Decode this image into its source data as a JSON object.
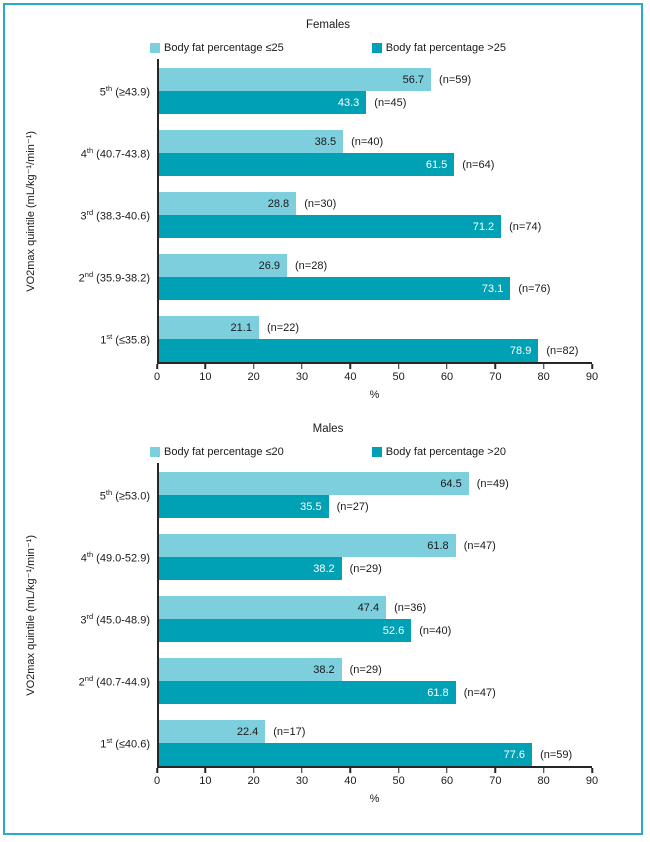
{
  "figure": {
    "border_color": "#2baac5",
    "background": "#ffffff",
    "axis_color": "#262626"
  },
  "chart_data": [
    {
      "type": "bar",
      "orientation": "horizontal",
      "title": "Females",
      "xlabel": "%",
      "ylabel": "VO2max quintile (mL/kg⁻¹/min⁻¹)",
      "xlim": [
        0,
        90
      ],
      "xticks": [
        0,
        10,
        20,
        30,
        40,
        50,
        60,
        70,
        80,
        90
      ],
      "grid": false,
      "legend_position": "top",
      "categories": [
        "5th (≥43.9)",
        "4th (40.7-43.8)",
        "3rd (38.3-40.6)",
        "2nd (35.9-38.2)",
        "1st (≤35.8)"
      ],
      "series": [
        {
          "name": "Body fat percentage ≤25",
          "color": "#7ecfdd",
          "text_color": "#1a1a1a",
          "values": [
            56.7,
            38.5,
            28.8,
            26.9,
            21.1
          ],
          "counts": [
            59,
            40,
            30,
            28,
            22
          ]
        },
        {
          "name": "Body fat percentage >25",
          "color": "#00a0b5",
          "text_color": "#ffffff",
          "values": [
            43.3,
            61.5,
            71.2,
            73.1,
            78.9
          ],
          "counts": [
            45,
            64,
            74,
            76,
            82
          ]
        }
      ]
    },
    {
      "type": "bar",
      "orientation": "horizontal",
      "title": "Males",
      "xlabel": "%",
      "ylabel": "VO2max quintile (mL/kg⁻¹/min⁻¹)",
      "xlim": [
        0,
        90
      ],
      "xticks": [
        0,
        10,
        20,
        30,
        40,
        50,
        60,
        70,
        80,
        90
      ],
      "grid": false,
      "legend_position": "top",
      "categories": [
        "5th (≥53.0)",
        "4th (49.0-52.9)",
        "3rd (45.0-48.9)",
        "2nd (40.7-44.9)",
        "1st (≤40.6)"
      ],
      "series": [
        {
          "name": "Body fat percentage ≤20",
          "color": "#7ecfdd",
          "text_color": "#1a1a1a",
          "values": [
            64.5,
            61.8,
            47.4,
            38.2,
            22.4
          ],
          "counts": [
            49,
            47,
            36,
            29,
            17
          ]
        },
        {
          "name": "Body fat percentage >20",
          "color": "#00a0b5",
          "text_color": "#ffffff",
          "values": [
            35.5,
            38.2,
            52.6,
            61.8,
            77.6
          ],
          "counts": [
            27,
            29,
            40,
            47,
            59
          ]
        }
      ]
    }
  ]
}
